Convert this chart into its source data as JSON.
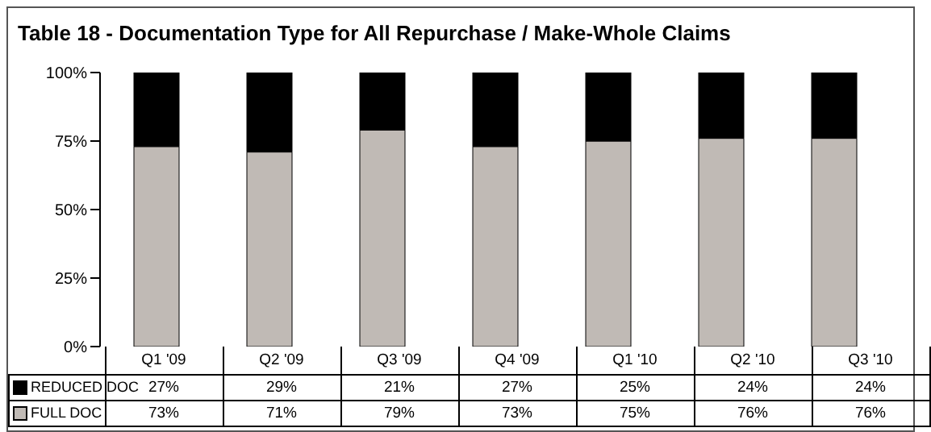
{
  "chart_data": {
    "type": "bar",
    "title": "Table 18 - Documentation Type for All Repurchase / Make-Whole Claims",
    "categories": [
      "Q1 '09",
      "Q2 '09",
      "Q3 '09",
      "Q4 '09",
      "Q1 '10",
      "Q2 '10",
      "Q3 '10"
    ],
    "stacked": true,
    "series": [
      {
        "name": "FULL DOC",
        "color": "#c0bab5",
        "values": [
          73,
          71,
          79,
          73,
          75,
          76,
          76
        ],
        "value_labels": [
          "73%",
          "71%",
          "79%",
          "73%",
          "75%",
          "76%",
          "76%"
        ]
      },
      {
        "name": "REDUCED DOC",
        "color": "#000000",
        "values": [
          27,
          29,
          21,
          27,
          25,
          24,
          24
        ],
        "value_labels": [
          "27%",
          "29%",
          "21%",
          "27%",
          "25%",
          "24%",
          "24%"
        ]
      }
    ],
    "ylim": [
      0,
      100
    ],
    "yticks": [
      {
        "value": 0,
        "label": "0%"
      },
      {
        "value": 25,
        "label": "25%"
      },
      {
        "value": 50,
        "label": "50%"
      },
      {
        "value": 75,
        "label": "75%"
      },
      {
        "value": 100,
        "label": "100%"
      }
    ],
    "legend": "bottom left",
    "grid": false
  }
}
